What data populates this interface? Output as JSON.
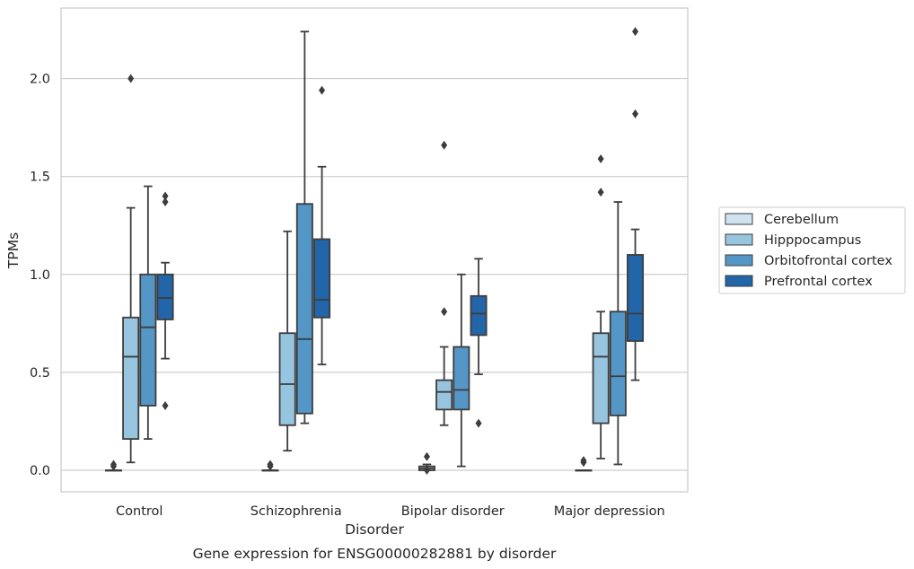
{
  "chart_data": {
    "type": "box",
    "title": "Gene expression for ENSG00000282881 by disorder",
    "xlabel": "Disorder",
    "ylabel": "TPMs",
    "categories": [
      "Control",
      "Schizophrenia",
      "Bipolar disorder",
      "Major depression"
    ],
    "ylim": [
      -0.11,
      2.36
    ],
    "yticks": [
      0.0,
      0.5,
      1.0,
      1.5,
      2.0
    ],
    "ytick_labels": [
      "0.0",
      "0.5",
      "1.0",
      "1.5",
      "2.0"
    ],
    "grid": "horizontal",
    "legend_position": "right",
    "series": [
      {
        "name": "Cerebellum",
        "color": "#d1e2f1",
        "boxes": [
          {
            "whislo": 0.0,
            "q1": 0.0,
            "med": 0.0,
            "q3": 0.0,
            "whishi": 0.0,
            "fliers": [
              0.02,
              0.03
            ]
          },
          {
            "whislo": 0.0,
            "q1": 0.0,
            "med": 0.0,
            "q3": 0.0,
            "whishi": 0.0,
            "fliers": [
              0.02,
              0.03
            ]
          },
          {
            "whislo": 0.0,
            "q1": 0.0,
            "med": 0.01,
            "q3": 0.02,
            "whishi": 0.03,
            "fliers": [
              0.07,
              0.0
            ]
          },
          {
            "whislo": 0.0,
            "q1": 0.0,
            "med": 0.0,
            "q3": 0.0,
            "whishi": 0.0,
            "fliers": [
              0.04,
              0.05
            ]
          }
        ]
      },
      {
        "name": "Hipppocampus",
        "color": "#97c4df",
        "boxes": [
          {
            "whislo": 0.04,
            "q1": 0.16,
            "med": 0.58,
            "q3": 0.78,
            "whishi": 1.34,
            "fliers": [
              2.0
            ]
          },
          {
            "whislo": 0.1,
            "q1": 0.23,
            "med": 0.44,
            "q3": 0.7,
            "whishi": 1.22,
            "fliers": []
          },
          {
            "whislo": 0.23,
            "q1": 0.31,
            "med": 0.4,
            "q3": 0.46,
            "whishi": 0.63,
            "fliers": [
              0.81,
              1.66
            ]
          },
          {
            "whislo": 0.06,
            "q1": 0.24,
            "med": 0.58,
            "q3": 0.7,
            "whishi": 0.81,
            "fliers": [
              1.42,
              1.59
            ]
          }
        ]
      },
      {
        "name": "Orbitofrontal cortex",
        "color": "#5497c6",
        "boxes": [
          {
            "whislo": 0.16,
            "q1": 0.33,
            "med": 0.73,
            "q3": 1.0,
            "whishi": 1.45,
            "fliers": []
          },
          {
            "whislo": 0.24,
            "q1": 0.29,
            "med": 0.67,
            "q3": 1.36,
            "whishi": 2.24,
            "fliers": []
          },
          {
            "whislo": 0.02,
            "q1": 0.31,
            "med": 0.41,
            "q3": 0.63,
            "whishi": 1.0,
            "fliers": []
          },
          {
            "whislo": 0.03,
            "q1": 0.28,
            "med": 0.48,
            "q3": 0.81,
            "whishi": 1.37,
            "fliers": []
          }
        ]
      },
      {
        "name": "Prefrontal cortex",
        "color": "#2265a8",
        "boxes": [
          {
            "whislo": 0.57,
            "q1": 0.77,
            "med": 0.88,
            "q3": 1.0,
            "whishi": 1.06,
            "fliers": [
              1.37,
              1.4,
              0.33
            ]
          },
          {
            "whislo": 0.54,
            "q1": 0.78,
            "med": 0.87,
            "q3": 1.18,
            "whishi": 1.55,
            "fliers": [
              1.94
            ]
          },
          {
            "whislo": 0.49,
            "q1": 0.69,
            "med": 0.8,
            "q3": 0.89,
            "whishi": 1.08,
            "fliers": [
              0.24
            ]
          },
          {
            "whislo": 0.46,
            "q1": 0.66,
            "med": 0.8,
            "q3": 1.1,
            "whishi": 1.23,
            "fliers": [
              1.82,
              2.24
            ]
          }
        ]
      }
    ]
  }
}
